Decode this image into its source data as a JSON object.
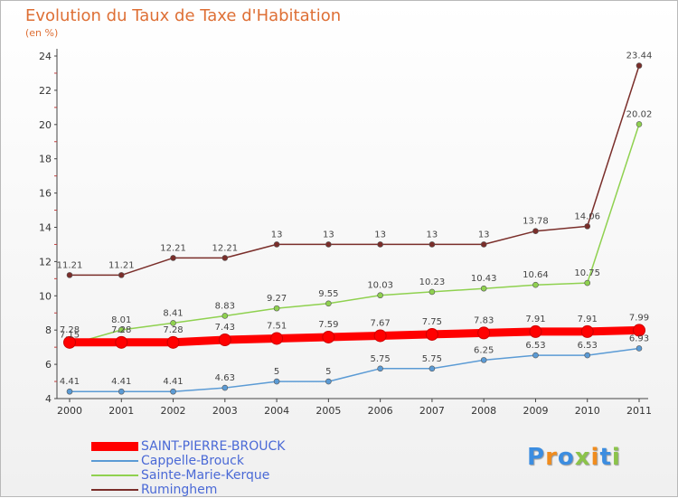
{
  "title": "Evolution du Taux de Taxe d'Habitation",
  "unit_label": "(en %)",
  "brand": {
    "text": "Proxiti",
    "letter_colors": [
      "#3c8de0",
      "#f08c1e",
      "#3c8de0",
      "#8bc34a",
      "#f08c1e",
      "#3c8de0",
      "#8bc34a"
    ]
  },
  "chart_data": {
    "type": "line",
    "title": "Evolution du Taux de Taxe d'Habitation",
    "ylabel": "(en %)",
    "xlabel": "",
    "x": [
      "2000",
      "2001",
      "2002",
      "2003",
      "2004",
      "2005",
      "2006",
      "2007",
      "2008",
      "2009",
      "2010",
      "2011"
    ],
    "ylim": [
      4,
      24
    ],
    "yticks": [
      "4",
      "6",
      "8",
      "10",
      "12",
      "14",
      "16",
      "18",
      "20",
      "22",
      "24"
    ],
    "grid": false,
    "legend_position": "bottom-left",
    "series": [
      {
        "name": "SAINT-PIERRE-BROUCK",
        "color": "#ff0000",
        "emphasis": true,
        "values": [
          7.28,
          7.28,
          7.28,
          7.43,
          7.51,
          7.59,
          7.67,
          7.75,
          7.83,
          7.91,
          7.91,
          7.99
        ],
        "labels": [
          "7.28",
          "7.28",
          "7.28",
          "7.43",
          "7.51",
          "7.59",
          "7.67",
          "7.75",
          "7.83",
          "7.91",
          "7.91",
          "7.99"
        ]
      },
      {
        "name": "Cappelle-Brouck",
        "color": "#5b9bd5",
        "emphasis": false,
        "values": [
          4.41,
          4.41,
          4.41,
          4.63,
          5,
          5,
          5.75,
          5.75,
          6.25,
          6.53,
          6.53,
          6.93
        ],
        "labels": [
          "4.41",
          "4.41",
          "4.41",
          "4.63",
          "5",
          "5",
          "5.75",
          "5.75",
          "6.25",
          "6.53",
          "6.53",
          "6.93"
        ]
      },
      {
        "name": "Sainte-Marie-Kerque",
        "color": "#8fd14f",
        "emphasis": false,
        "values": [
          7.15,
          8.01,
          8.41,
          8.83,
          9.27,
          9.55,
          10.03,
          10.23,
          10.43,
          10.64,
          10.75,
          20.02
        ],
        "labels": [
          "7.15",
          "8.01",
          "8.41",
          "8.83",
          "9.27",
          "9.55",
          "10.03",
          "10.23",
          "10.43",
          "10.64",
          "10.75",
          "20.02"
        ]
      },
      {
        "name": "Ruminghem",
        "color": "#7a2e2a",
        "emphasis": false,
        "values": [
          11.21,
          11.21,
          12.21,
          12.21,
          13,
          13,
          13,
          13,
          13,
          13.78,
          14.06,
          23.44
        ],
        "labels": [
          "11.21",
          "11.21",
          "12.21",
          "12.21",
          "13",
          "13",
          "13",
          "13",
          "13",
          "13.78",
          "14.06",
          "23.44"
        ]
      }
    ]
  }
}
